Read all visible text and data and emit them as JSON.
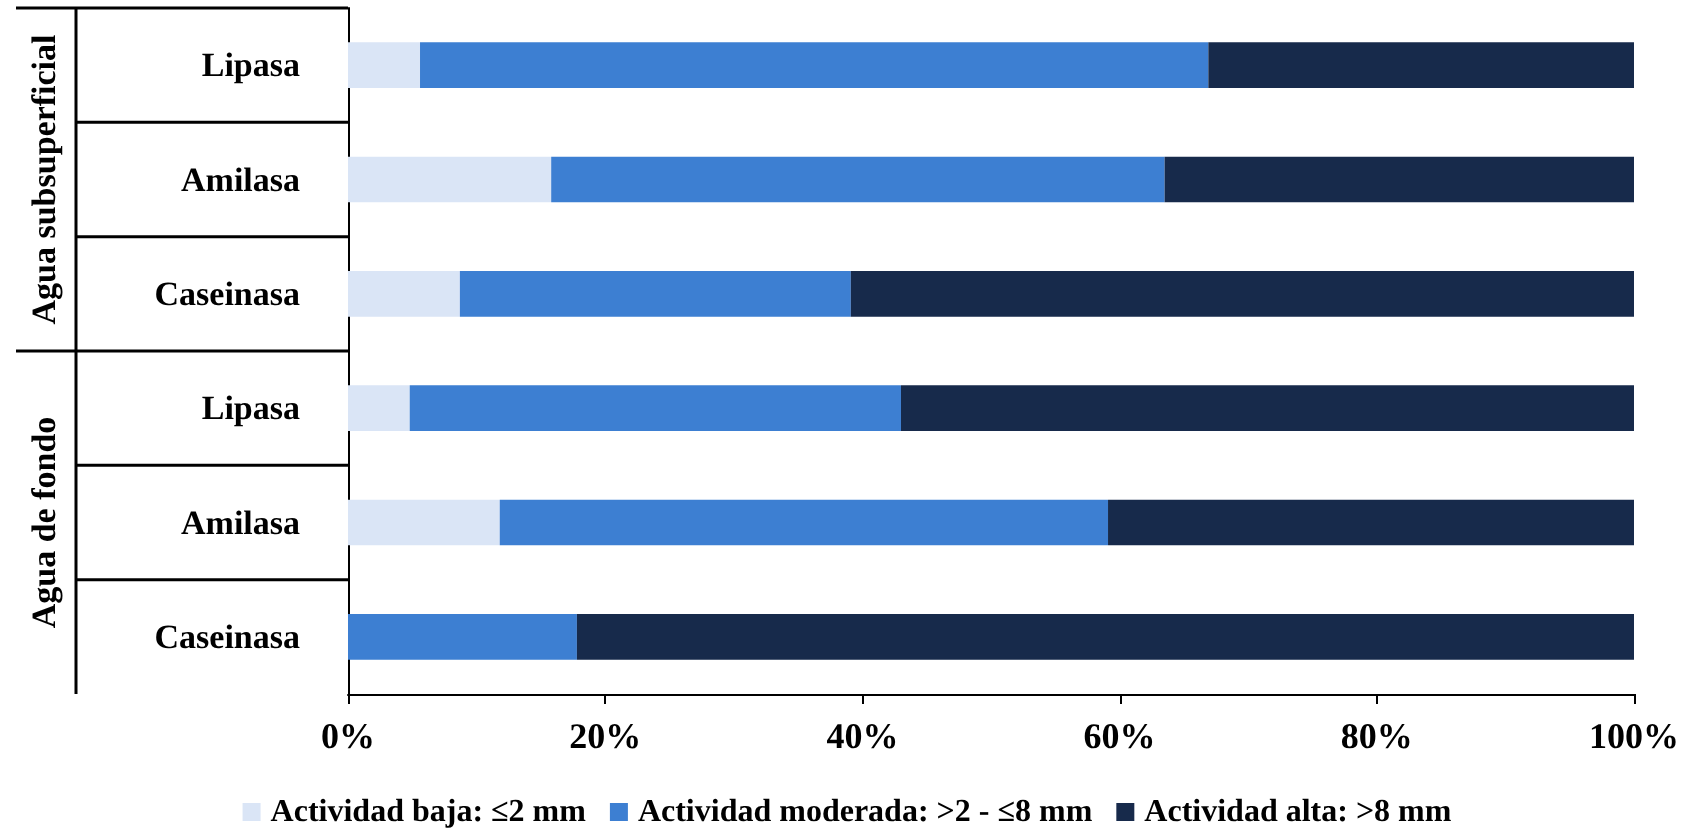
{
  "chart_data": {
    "type": "bar",
    "orientation": "horizontal",
    "stacked": true,
    "categories": [
      "Lipasa",
      "Amilasa",
      "Caseinasa",
      "Lipasa",
      "Amilasa",
      "Caseinasa"
    ],
    "series": [
      {
        "name": "Actividad baja: ≤2 mm",
        "color": "#dae5f6",
        "values": [
          5.6,
          15.8,
          8.7,
          4.8,
          11.8,
          0
        ]
      },
      {
        "name": "Actividad moderada: >2 - ≤8 mm",
        "color": "#3d7fd2",
        "values": [
          61.3,
          47.7,
          30.4,
          38.2,
          47.3,
          17.8
        ]
      },
      {
        "name": "Actividad alta: >8 mm",
        "color": "#172a4b",
        "values": [
          33.1,
          36.5,
          60.9,
          57,
          40.9,
          82.2
        ]
      }
    ],
    "xlim": [
      0,
      100
    ],
    "xticks": [
      {
        "value": 0,
        "label": "0%"
      },
      {
        "value": 20,
        "label": "20%"
      },
      {
        "value": 40,
        "label": "40%"
      },
      {
        "value": 60,
        "label": "60%"
      },
      {
        "value": 80,
        "label": "80%"
      },
      {
        "value": 100,
        "label": "100%"
      }
    ],
    "annotations": [
      "Agua subsuperficial",
      "Agua de fondo"
    ],
    "grid": false,
    "legend": "bottom"
  }
}
